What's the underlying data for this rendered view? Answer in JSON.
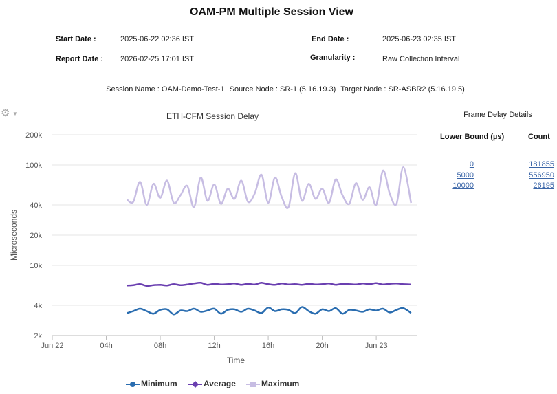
{
  "report": {
    "title": "OAM-PM Multiple Session View",
    "start_date_label": "Start Date :",
    "start_date": "2025-06-22 02:36 IST",
    "end_date_label": "End Date :",
    "end_date": "2025-06-23 02:35 IST",
    "report_date_label": "Report Date :",
    "report_date": "2026-02-25 17:01 IST",
    "granularity_label": "Granularity :",
    "granularity": "Raw Collection Interval"
  },
  "session": {
    "name": "Session Name : OAM-Demo-Test-1",
    "source": "Source Node : SR-1 (5.16.19.3)",
    "target": "Target Node : SR-ASBR2 (5.16.19.5)"
  },
  "chart_data": {
    "type": "line",
    "title": "ETH-CFM Session Delay",
    "xlabel": "Time",
    "ylabel": "Microseconds",
    "yscale": "log",
    "ylim": [
      2000,
      200000
    ],
    "xlim": [
      "2025-06-22 00:00",
      "2025-06-23 03:00"
    ],
    "y_ticks": [
      {
        "value": 2000,
        "label": "2k"
      },
      {
        "value": 4000,
        "label": "4k"
      },
      {
        "value": 10000,
        "label": "10k"
      },
      {
        "value": 20000,
        "label": "20k"
      },
      {
        "value": 40000,
        "label": "40k"
      },
      {
        "value": 100000,
        "label": "100k"
      },
      {
        "value": 200000,
        "label": "200k"
      }
    ],
    "x_ticks": [
      {
        "value": "2025-06-22 00:00",
        "label": "Jun 22"
      },
      {
        "value": "2025-06-22 04:00",
        "label": "04h"
      },
      {
        "value": "2025-06-22 08:00",
        "label": "08h"
      },
      {
        "value": "2025-06-22 12:00",
        "label": "12h"
      },
      {
        "value": "2025-06-22 16:00",
        "label": "16h"
      },
      {
        "value": "2025-06-22 20:00",
        "label": "20h"
      },
      {
        "value": "2025-06-23 00:00",
        "label": "Jun 23"
      }
    ],
    "grid": "horizontal",
    "legend_position": "bottom",
    "colors": {
      "Minimum": "#2a6db0",
      "Average": "#6a3fb0",
      "Maximum": "#c7bde3"
    },
    "series": [
      {
        "name": "Minimum",
        "x": [
          "2025-06-22 05:33",
          "2025-06-22 06:00",
          "2025-06-22 06:30",
          "2025-06-22 07:00",
          "2025-06-22 07:30",
          "2025-06-22 08:00",
          "2025-06-22 08:30",
          "2025-06-22 09:00",
          "2025-06-22 09:30",
          "2025-06-22 10:00",
          "2025-06-22 10:30",
          "2025-06-22 11:00",
          "2025-06-22 11:30",
          "2025-06-22 12:00",
          "2025-06-22 12:30",
          "2025-06-22 13:00",
          "2025-06-22 13:30",
          "2025-06-22 14:00",
          "2025-06-22 14:30",
          "2025-06-22 15:00",
          "2025-06-22 15:30",
          "2025-06-22 16:00",
          "2025-06-22 16:30",
          "2025-06-22 17:00",
          "2025-06-22 17:30",
          "2025-06-22 18:00",
          "2025-06-22 18:30",
          "2025-06-22 19:00",
          "2025-06-22 19:30",
          "2025-06-22 20:00",
          "2025-06-22 20:30",
          "2025-06-22 21:00",
          "2025-06-22 21:30",
          "2025-06-22 22:00",
          "2025-06-22 22:30",
          "2025-06-22 23:00",
          "2025-06-22 23:30",
          "2025-06-23 00:00",
          "2025-06-23 00:30",
          "2025-06-23 01:00",
          "2025-06-23 01:30",
          "2025-06-23 02:00",
          "2025-06-23 02:35"
        ],
        "values": [
          3350,
          3500,
          3700,
          3500,
          3300,
          3600,
          3650,
          3250,
          3550,
          3500,
          3700,
          3450,
          3550,
          3700,
          3300,
          3600,
          3650,
          3450,
          3700,
          3550,
          3350,
          3800,
          3500,
          3650,
          3600,
          3350,
          3850,
          3500,
          3300,
          3650,
          3500,
          3750,
          3300,
          3600,
          3550,
          3450,
          3650,
          3550,
          3700,
          3400,
          3600,
          3750,
          3350
        ]
      },
      {
        "name": "Average",
        "x": [
          "2025-06-22 05:33",
          "2025-06-22 06:00",
          "2025-06-22 06:30",
          "2025-06-22 07:00",
          "2025-06-22 07:30",
          "2025-06-22 08:00",
          "2025-06-22 08:30",
          "2025-06-22 09:00",
          "2025-06-22 09:30",
          "2025-06-22 10:00",
          "2025-06-22 10:30",
          "2025-06-22 11:00",
          "2025-06-22 11:30",
          "2025-06-22 12:00",
          "2025-06-22 12:30",
          "2025-06-22 13:00",
          "2025-06-22 13:30",
          "2025-06-22 14:00",
          "2025-06-22 14:30",
          "2025-06-22 15:00",
          "2025-06-22 15:30",
          "2025-06-22 16:00",
          "2025-06-22 16:30",
          "2025-06-22 17:00",
          "2025-06-22 17:30",
          "2025-06-22 18:00",
          "2025-06-22 18:30",
          "2025-06-22 19:00",
          "2025-06-22 19:30",
          "2025-06-22 20:00",
          "2025-06-22 20:30",
          "2025-06-22 21:00",
          "2025-06-22 21:30",
          "2025-06-22 22:00",
          "2025-06-22 22:30",
          "2025-06-22 23:00",
          "2025-06-22 23:30",
          "2025-06-23 00:00",
          "2025-06-23 00:30",
          "2025-06-23 01:00",
          "2025-06-23 01:30",
          "2025-06-23 02:00",
          "2025-06-23 02:35"
        ],
        "values": [
          6300,
          6350,
          6500,
          6250,
          6350,
          6400,
          6300,
          6500,
          6350,
          6450,
          6600,
          6700,
          6400,
          6550,
          6450,
          6500,
          6600,
          6400,
          6550,
          6450,
          6700,
          6500,
          6400,
          6600,
          6450,
          6500,
          6400,
          6550,
          6450,
          6500,
          6600,
          6400,
          6550,
          6500,
          6450,
          6600,
          6500,
          6650,
          6450,
          6550,
          6600,
          6500,
          6450
        ]
      },
      {
        "name": "Maximum",
        "x": [
          "2025-06-22 05:33",
          "2025-06-22 06:00",
          "2025-06-22 06:30",
          "2025-06-22 07:00",
          "2025-06-22 07:30",
          "2025-06-22 08:00",
          "2025-06-22 08:30",
          "2025-06-22 09:00",
          "2025-06-22 09:30",
          "2025-06-22 10:00",
          "2025-06-22 10:30",
          "2025-06-22 11:00",
          "2025-06-22 11:30",
          "2025-06-22 12:00",
          "2025-06-22 12:30",
          "2025-06-22 13:00",
          "2025-06-22 13:30",
          "2025-06-22 14:00",
          "2025-06-22 14:30",
          "2025-06-22 15:00",
          "2025-06-22 15:30",
          "2025-06-22 16:00",
          "2025-06-22 16:30",
          "2025-06-22 17:00",
          "2025-06-22 17:30",
          "2025-06-22 18:00",
          "2025-06-22 18:30",
          "2025-06-22 19:00",
          "2025-06-22 19:30",
          "2025-06-22 20:00",
          "2025-06-22 20:30",
          "2025-06-22 21:00",
          "2025-06-22 21:30",
          "2025-06-22 22:00",
          "2025-06-22 22:30",
          "2025-06-22 23:00",
          "2025-06-22 23:30",
          "2025-06-23 00:00",
          "2025-06-23 00:30",
          "2025-06-23 01:00",
          "2025-06-23 01:30",
          "2025-06-23 02:00",
          "2025-06-23 02:35"
        ],
        "values": [
          45000,
          43000,
          68000,
          40000,
          65000,
          47000,
          70000,
          42000,
          50000,
          62000,
          38000,
          75000,
          44000,
          64000,
          41000,
          58000,
          46000,
          70000,
          43000,
          52000,
          80000,
          42000,
          75000,
          48000,
          38000,
          83000,
          44000,
          65000,
          46000,
          58000,
          42000,
          72000,
          50000,
          41000,
          66000,
          45000,
          60000,
          40000,
          88000,
          52000,
          41000,
          95000,
          42000
        ]
      }
    ]
  },
  "frame_delay": {
    "title": "Frame Delay Details",
    "col_lower": "Lower Bound (µs)",
    "col_count": "Count",
    "rows": [
      {
        "lower": "0",
        "count": "181855"
      },
      {
        "lower": "5000",
        "count": "556950"
      },
      {
        "lower": "10000",
        "count": "26195"
      }
    ]
  },
  "icons": {
    "options": "gear-icon",
    "caret": "caret-down-icon"
  }
}
